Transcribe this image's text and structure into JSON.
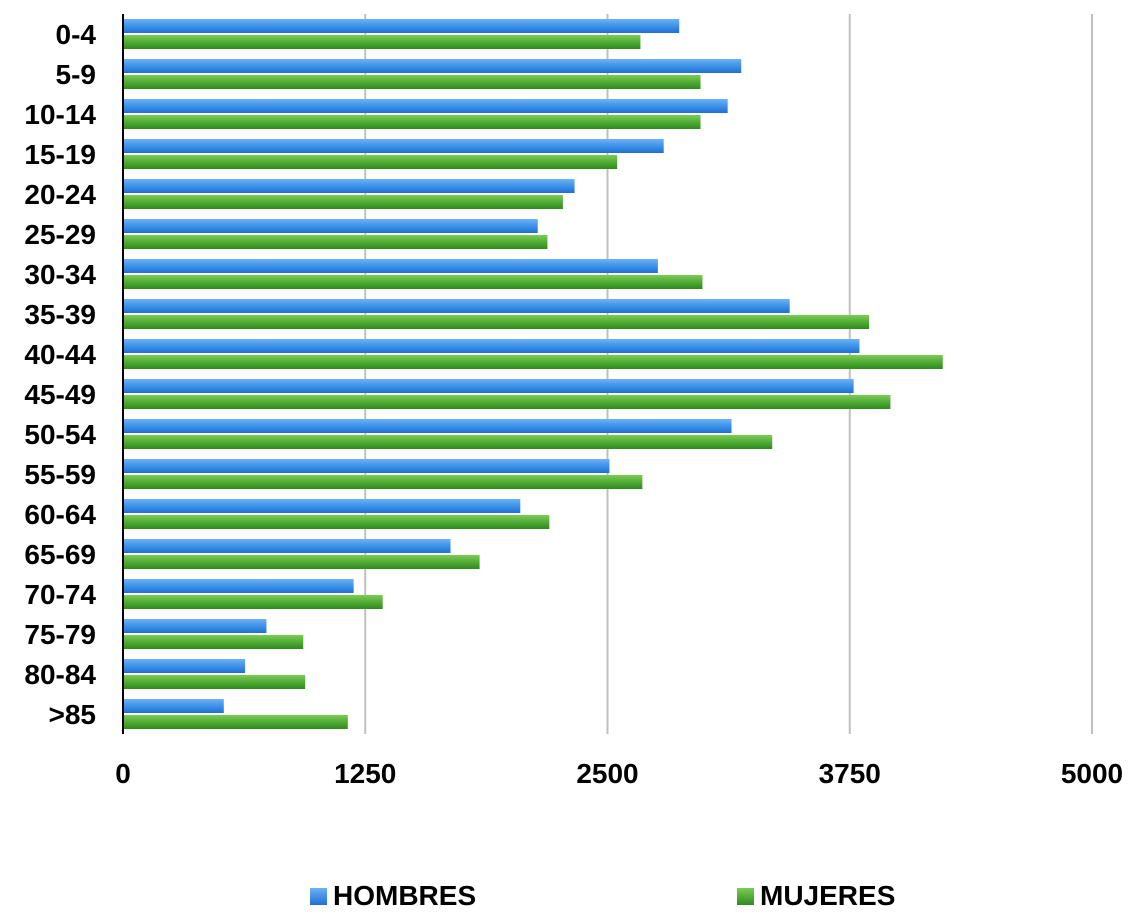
{
  "chart_data": {
    "type": "bar",
    "orientation": "horizontal",
    "categories": [
      "0-4",
      "5-9",
      "10-14",
      "15-19",
      "20-24",
      "25-29",
      "30-34",
      "35-39",
      "40-44",
      "45-49",
      "50-54",
      "55-59",
      "60-64",
      "65-69",
      "70-74",
      "75-79",
      "80-84",
      ">85"
    ],
    "series": [
      {
        "name": "HOMBRES",
        "color": "#3a8fe8",
        "values": [
          2870,
          3190,
          3120,
          2790,
          2330,
          2140,
          2760,
          3440,
          3800,
          3770,
          3140,
          2510,
          2050,
          1690,
          1190,
          740,
          630,
          520
        ]
      },
      {
        "name": "MUJERES",
        "color": "#4ea832",
        "values": [
          2670,
          2980,
          2980,
          2550,
          2270,
          2190,
          2990,
          3850,
          4230,
          3960,
          3350,
          2680,
          2200,
          1840,
          1340,
          930,
          940,
          1160
        ]
      }
    ],
    "xlim": [
      0,
      5000
    ],
    "xticks": [
      "0",
      "1250",
      "2500",
      "3750",
      "5000"
    ],
    "grid": true,
    "legend_position": "bottom"
  }
}
